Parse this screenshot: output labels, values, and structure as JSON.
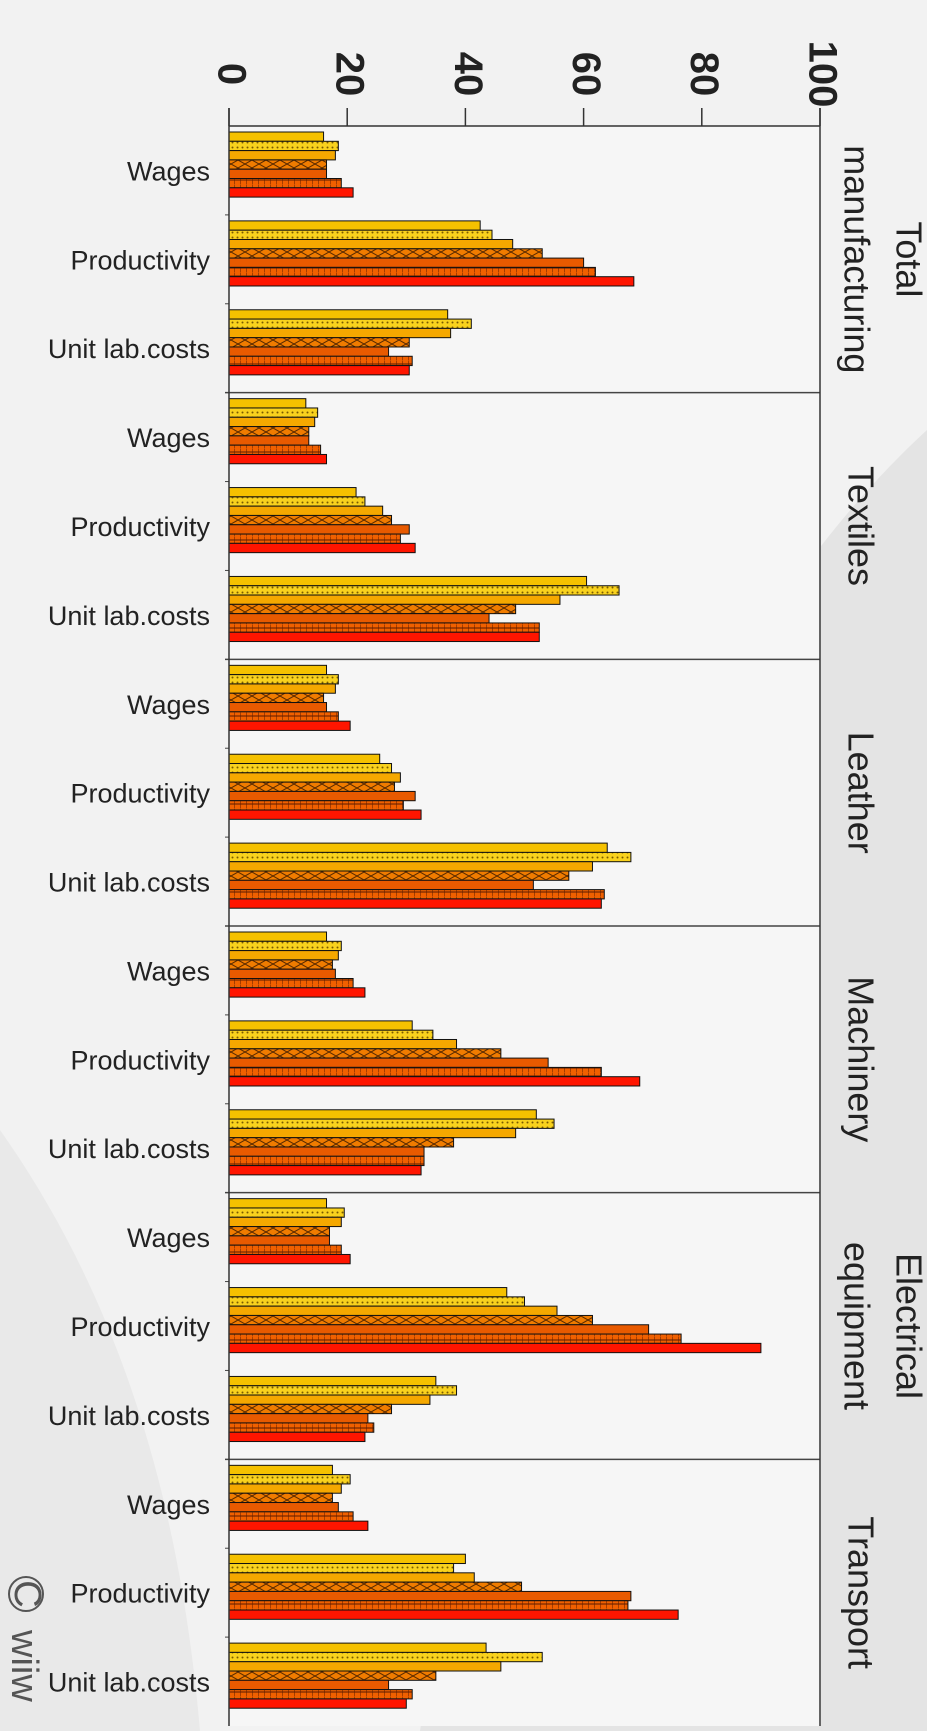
{
  "chart_data": {
    "type": "bar",
    "orientation": "horizontal",
    "rotated": "90deg clockwise",
    "xlim": [
      0,
      100
    ],
    "xticks": [
      "0",
      "20",
      "40",
      "60",
      "80",
      "100"
    ],
    "grid": false,
    "legend": "none",
    "series_colors": [
      "#f5c100",
      "#f9d21d",
      "#f5a800",
      "#f07c00",
      "#e85a00",
      "#f06000",
      "#ff1500"
    ],
    "series_patterns": [
      "solid",
      "dots",
      "solid",
      "crosshatch",
      "solid",
      "bricks",
      "solid"
    ],
    "groups": [
      {
        "name": "Total manufacturing",
        "name_lines": [
          "Total",
          "manufacturing"
        ],
        "metrics": [
          {
            "label": "Wages",
            "values": [
              16,
              18.5,
              18,
              16.5,
              16.5,
              19,
              21
            ]
          },
          {
            "label": "Productivity",
            "values": [
              42.5,
              44.5,
              48,
              53,
              60,
              62,
              68.5
            ]
          },
          {
            "label": "Unit lab.costs",
            "values": [
              37,
              41,
              37.5,
              30.5,
              27,
              31,
              30.5
            ]
          }
        ]
      },
      {
        "name": "Textiles",
        "name_lines": [
          "Textiles"
        ],
        "metrics": [
          {
            "label": "Wages",
            "values": [
              13,
              15,
              14.5,
              13.5,
              13.5,
              15.5,
              16.5
            ]
          },
          {
            "label": "Productivity",
            "values": [
              21.5,
              23,
              26,
              27.5,
              30.5,
              29,
              31.5
            ]
          },
          {
            "label": "Unit lab.costs",
            "values": [
              60.5,
              66,
              56,
              48.5,
              44,
              52.5,
              52.5
            ]
          }
        ]
      },
      {
        "name": "Leather",
        "name_lines": [
          "Leather"
        ],
        "metrics": [
          {
            "label": "Wages",
            "values": [
              16.5,
              18.5,
              18,
              16,
              16.5,
              18.5,
              20.5
            ]
          },
          {
            "label": "Productivity",
            "values": [
              25.5,
              27.5,
              29,
              28,
              31.5,
              29.5,
              32.5
            ]
          },
          {
            "label": "Unit lab.costs",
            "values": [
              64,
              68,
              61.5,
              57.5,
              51.5,
              63.5,
              63
            ]
          }
        ]
      },
      {
        "name": "Machinery",
        "name_lines": [
          "Machinery"
        ],
        "metrics": [
          {
            "label": "Wages",
            "values": [
              16.5,
              19,
              18.5,
              17.5,
              18,
              21,
              23
            ]
          },
          {
            "label": "Productivity",
            "values": [
              31,
              34.5,
              38.5,
              46,
              54,
              63,
              69.5
            ]
          },
          {
            "label": "Unit lab.costs",
            "values": [
              52,
              55,
              48.5,
              38,
              33,
              33,
              32.5
            ]
          }
        ]
      },
      {
        "name": "Electrical equipment",
        "name_lines": [
          "Electrical",
          "equipment"
        ],
        "metrics": [
          {
            "label": "Wages",
            "values": [
              16.5,
              19.5,
              19,
              17,
              17,
              19,
              20.5
            ]
          },
          {
            "label": "Productivity",
            "values": [
              47,
              50,
              55.5,
              61.5,
              71,
              76.5,
              90
            ]
          },
          {
            "label": "Unit lab.costs",
            "values": [
              35,
              38.5,
              34,
              27.5,
              23.5,
              24.5,
              23
            ]
          }
        ]
      },
      {
        "name": "Transport",
        "name_lines": [
          "Transport"
        ],
        "metrics": [
          {
            "label": "Wages",
            "values": [
              17.5,
              20.5,
              19,
              17.5,
              18.5,
              21,
              23.5
            ]
          },
          {
            "label": "Productivity",
            "values": [
              40,
              38,
              41.5,
              49.5,
              68,
              67.5,
              76
            ]
          },
          {
            "label": "Unit lab.costs",
            "values": [
              43.5,
              53,
              46,
              35,
              27,
              31,
              30
            ]
          }
        ]
      }
    ]
  },
  "watermark": {
    "copyright_symbol": "C",
    "text": "wiiw"
  }
}
